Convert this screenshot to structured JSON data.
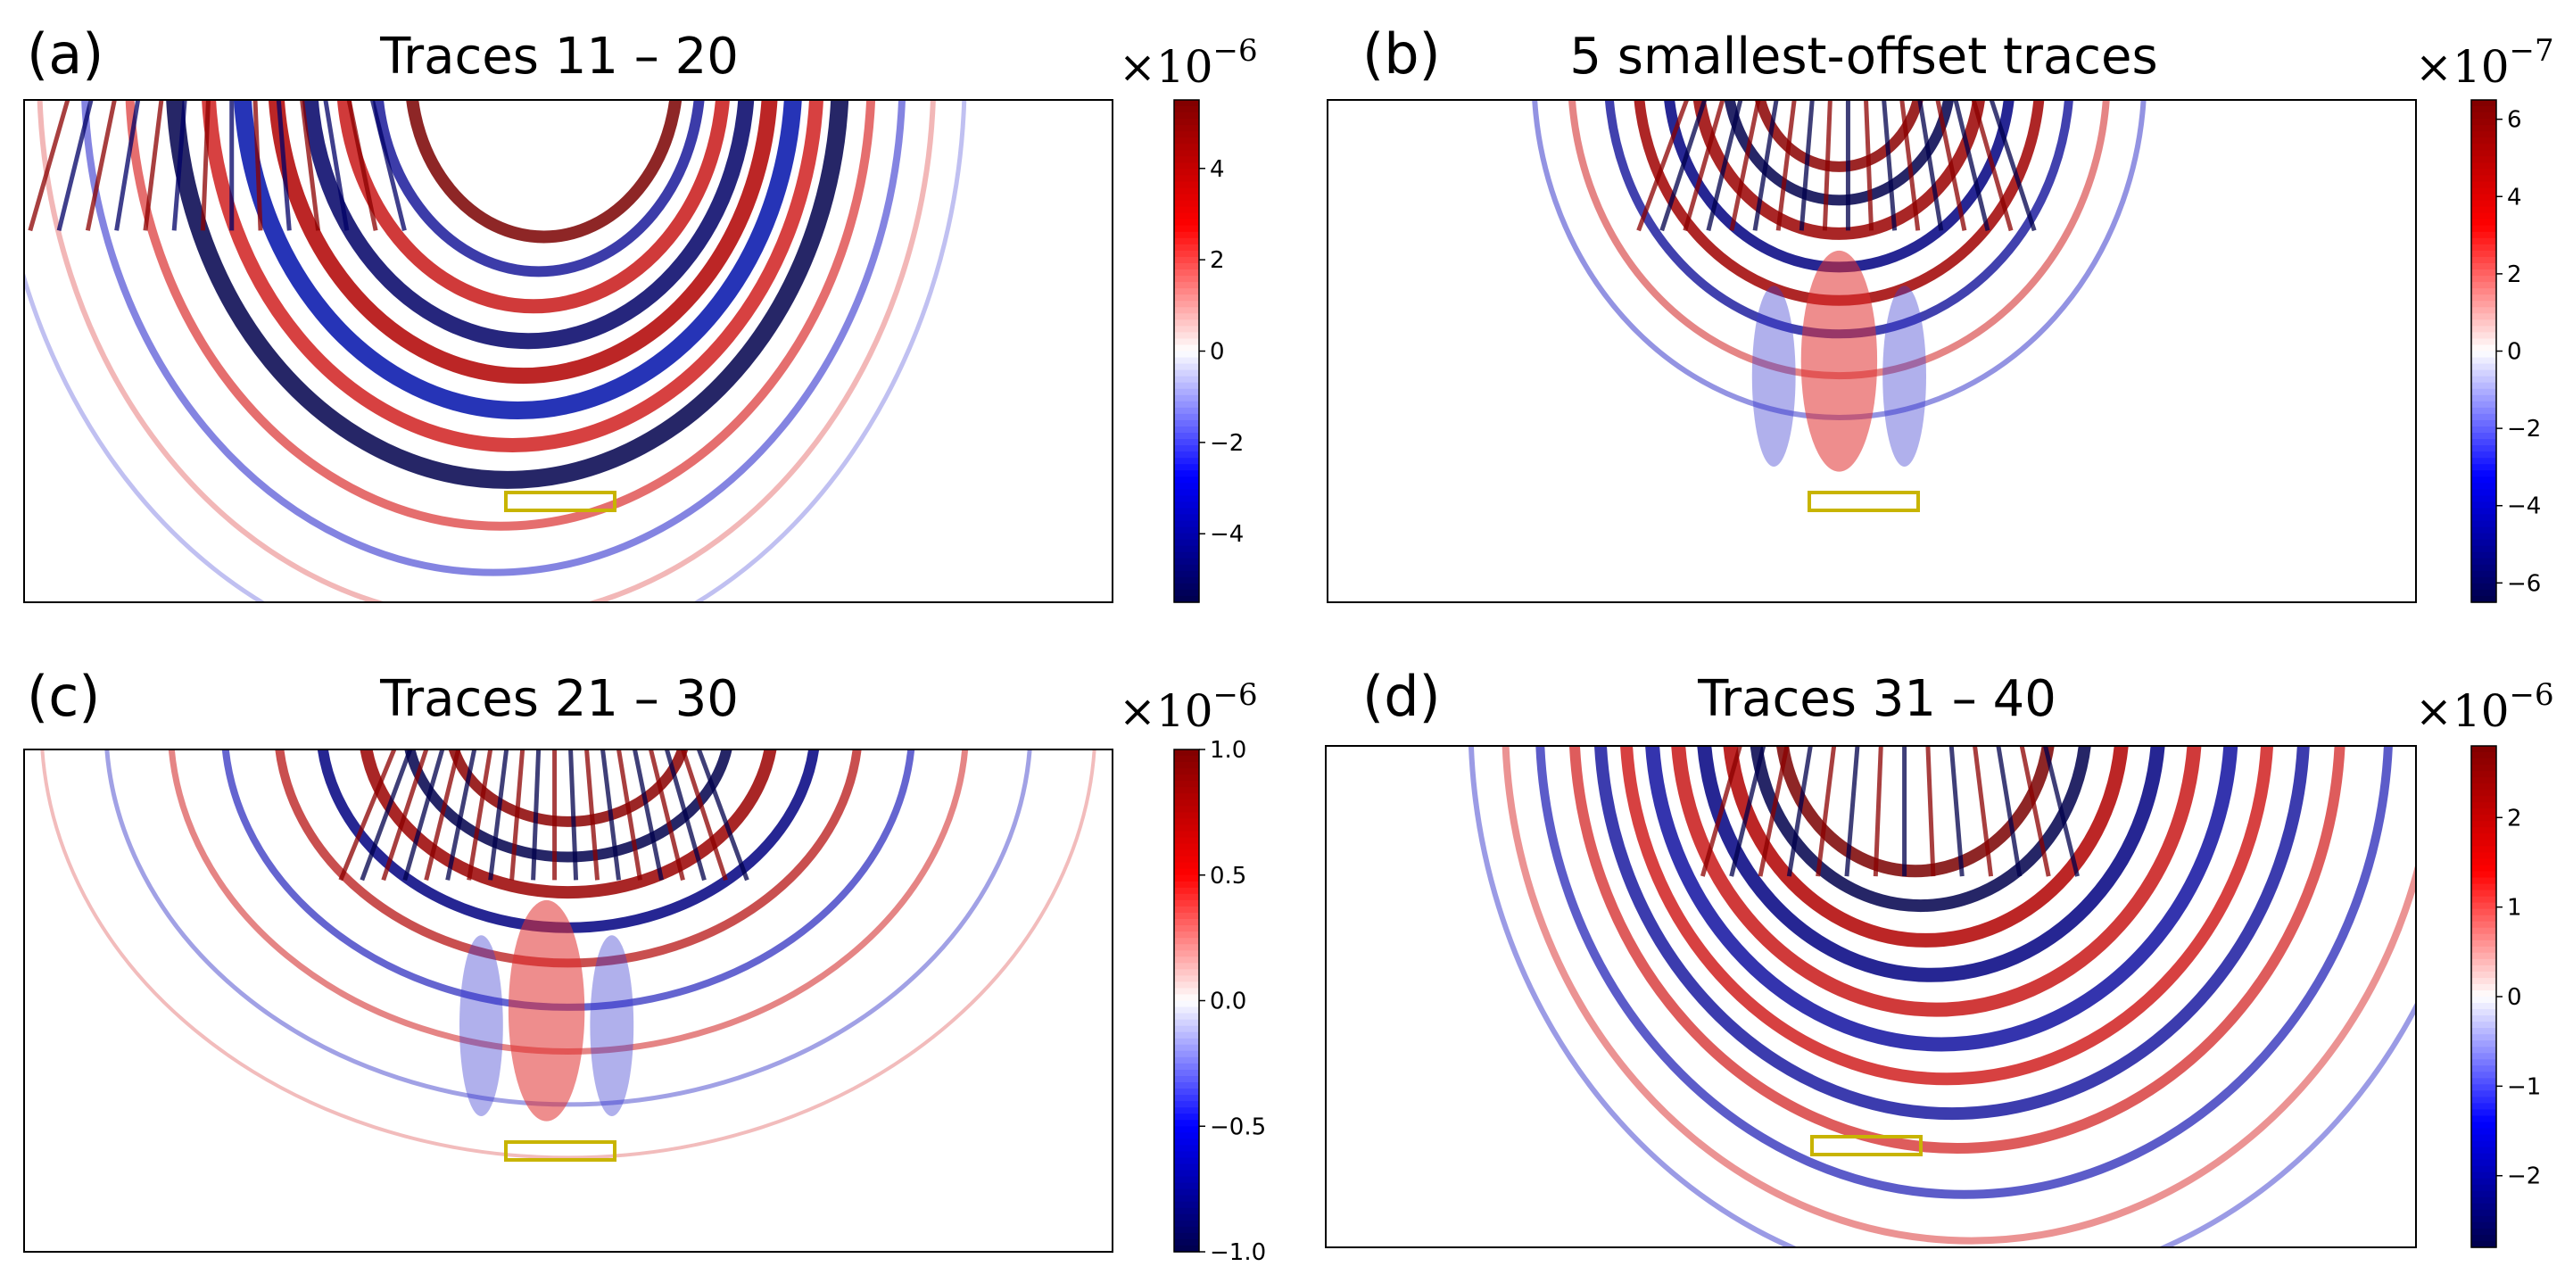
{
  "chart_data": [
    {
      "type": "heatmap",
      "panel_label": "(a)",
      "title": "Traces 11 – 20",
      "colorbar": {
        "cmap": "seismic",
        "range": [
          -5.5,
          5.5
        ],
        "ticks": [
          4,
          2,
          0,
          -2,
          -4
        ],
        "tick_labels": [
          "4",
          "2",
          "0",
          "−2",
          "−4"
        ],
        "scale_base": "×10",
        "scale_exp": "−6"
      },
      "pattern": "left-dipping",
      "xlabel": "",
      "ylabel": "",
      "annotation": "yellow target rectangle"
    },
    {
      "type": "heatmap",
      "panel_label": "(b)",
      "title": "5 smallest-offset traces",
      "colorbar": {
        "cmap": "seismic",
        "range": [
          -6.5,
          6.5
        ],
        "ticks": [
          6,
          4,
          2,
          0,
          -2,
          -4,
          -6
        ],
        "tick_labels": [
          "6",
          "4",
          "2",
          "0",
          "−2",
          "−4",
          "−6"
        ],
        "scale_base": "×10",
        "scale_exp": "−7"
      },
      "pattern": "centered-narrow",
      "xlabel": "",
      "ylabel": "",
      "annotation": "yellow target rectangle"
    },
    {
      "type": "heatmap",
      "panel_label": "(c)",
      "title": "Traces 21 – 30",
      "colorbar": {
        "cmap": "seismic",
        "range": [
          -1.0,
          1.0
        ],
        "ticks": [
          1.0,
          0.5,
          0.0,
          -0.5,
          -1.0
        ],
        "tick_labels": [
          "1.0",
          "0.5",
          "0.0",
          "−0.5",
          "−1.0"
        ],
        "scale_base": "×10",
        "scale_exp": "−6"
      },
      "pattern": "centered-wide",
      "xlabel": "",
      "ylabel": "",
      "annotation": "yellow target rectangle"
    },
    {
      "type": "heatmap",
      "panel_label": "(d)",
      "title": "Traces 31 – 40",
      "colorbar": {
        "cmap": "seismic",
        "range": [
          -2.8,
          2.8
        ],
        "ticks": [
          2,
          1,
          0,
          -1,
          -2
        ],
        "tick_labels": [
          "2",
          "1",
          "0",
          "−1",
          "−2"
        ],
        "scale_base": "×10",
        "scale_exp": "−6"
      },
      "pattern": "right-dipping",
      "xlabel": "",
      "ylabel": "",
      "annotation": "yellow target rectangle"
    }
  ],
  "colors": {
    "positive": "#8b0000",
    "negative": "#00004c",
    "zero": "#ffffff",
    "target_box": "#c8b400"
  }
}
